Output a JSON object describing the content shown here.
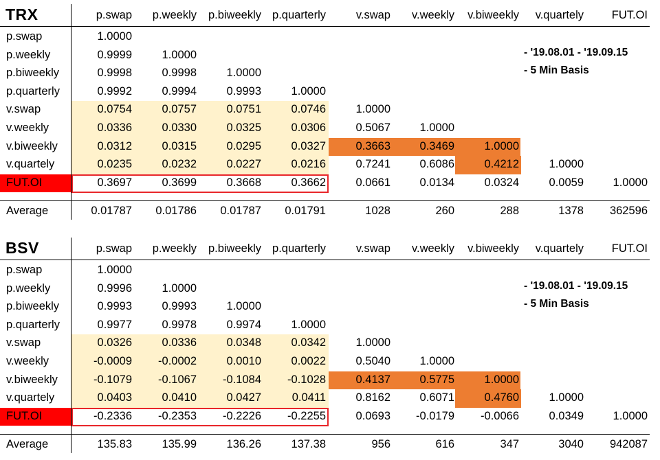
{
  "columns": [
    "p.swap",
    "p.weekly",
    "p.biweekly",
    "p.quarterly",
    "v.swap",
    "v.weekly",
    "v.biweekly",
    "v.quartely",
    "FUT.OI"
  ],
  "rows": [
    "p.swap",
    "p.weekly",
    "p.biweekly",
    "p.quarterly",
    "v.swap",
    "v.weekly",
    "v.biweekly",
    "v.quartely",
    "FUT.OI"
  ],
  "average_label": "Average",
  "notes": [
    "- '19.08.01 - '19.09.15",
    "- 5 Min Basis"
  ],
  "colors": {
    "light": "#fff2cc",
    "orange": "#ed7d31",
    "red": "#ff0000",
    "box": "#e8262a"
  },
  "blocks": [
    {
      "title": "TRX",
      "matrix": [
        [
          "1.0000"
        ],
        [
          "0.9999",
          "1.0000"
        ],
        [
          "0.9998",
          "0.9998",
          "1.0000"
        ],
        [
          "0.9992",
          "0.9994",
          "0.9993",
          "1.0000"
        ],
        [
          "0.0754",
          "0.0757",
          "0.0751",
          "0.0746",
          "1.0000"
        ],
        [
          "0.0336",
          "0.0330",
          "0.0325",
          "0.0306",
          "0.5067",
          "1.0000"
        ],
        [
          "0.0312",
          "0.0315",
          "0.0295",
          "0.0327",
          "0.3663",
          "0.3469",
          "1.0000"
        ],
        [
          "0.0235",
          "0.0232",
          "0.0227",
          "0.0216",
          "0.7241",
          "0.6086",
          "0.4212",
          "1.0000"
        ],
        [
          "0.3697",
          "0.3699",
          "0.3668",
          "0.3662",
          "0.0661",
          "0.0134",
          "0.0324",
          "0.0059",
          "1.0000"
        ]
      ],
      "averages": [
        "0.01787",
        "0.01786",
        "0.01787",
        "0.01791",
        "1028",
        "260",
        "288",
        "1378",
        "362596"
      ]
    },
    {
      "title": "BSV",
      "matrix": [
        [
          "1.0000"
        ],
        [
          "0.9996",
          "1.0000"
        ],
        [
          "0.9993",
          "0.9993",
          "1.0000"
        ],
        [
          "0.9977",
          "0.9978",
          "0.9974",
          "1.0000"
        ],
        [
          "0.0326",
          "0.0336",
          "0.0348",
          "0.0342",
          "1.0000"
        ],
        [
          "-0.0009",
          "-0.0002",
          "0.0010",
          "0.0022",
          "0.5040",
          "1.0000"
        ],
        [
          "-0.1079",
          "-0.1067",
          "-0.1084",
          "-0.1028",
          "0.4137",
          "0.5775",
          "1.0000"
        ],
        [
          "0.0403",
          "0.0410",
          "0.0427",
          "0.0411",
          "0.8162",
          "0.6071",
          "0.4760",
          "1.0000"
        ],
        [
          "-0.2336",
          "-0.2353",
          "-0.2226",
          "-0.2255",
          "0.0693",
          "-0.0179",
          "-0.0066",
          "0.0349",
          "1.0000"
        ]
      ],
      "averages": [
        "135.83",
        "135.99",
        "136.26",
        "137.38",
        "956",
        "616",
        "347",
        "3040",
        "942087"
      ]
    }
  ]
}
